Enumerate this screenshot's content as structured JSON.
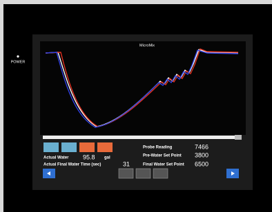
{
  "power_label": "POWER",
  "screen": {
    "title": "MicroMix",
    "readings": [
      {
        "label": "Actual Water",
        "value": 95.8,
        "unit": "gal"
      },
      {
        "label": "Actual Final Water Time (sec)",
        "value": 31
      },
      {
        "label": "Probe Reading",
        "value": 7466
      },
      {
        "label": "Pre-Water Set Point",
        "value": 3800
      },
      {
        "label": "Final Water Set Point",
        "value": 6500
      }
    ]
  }
}
